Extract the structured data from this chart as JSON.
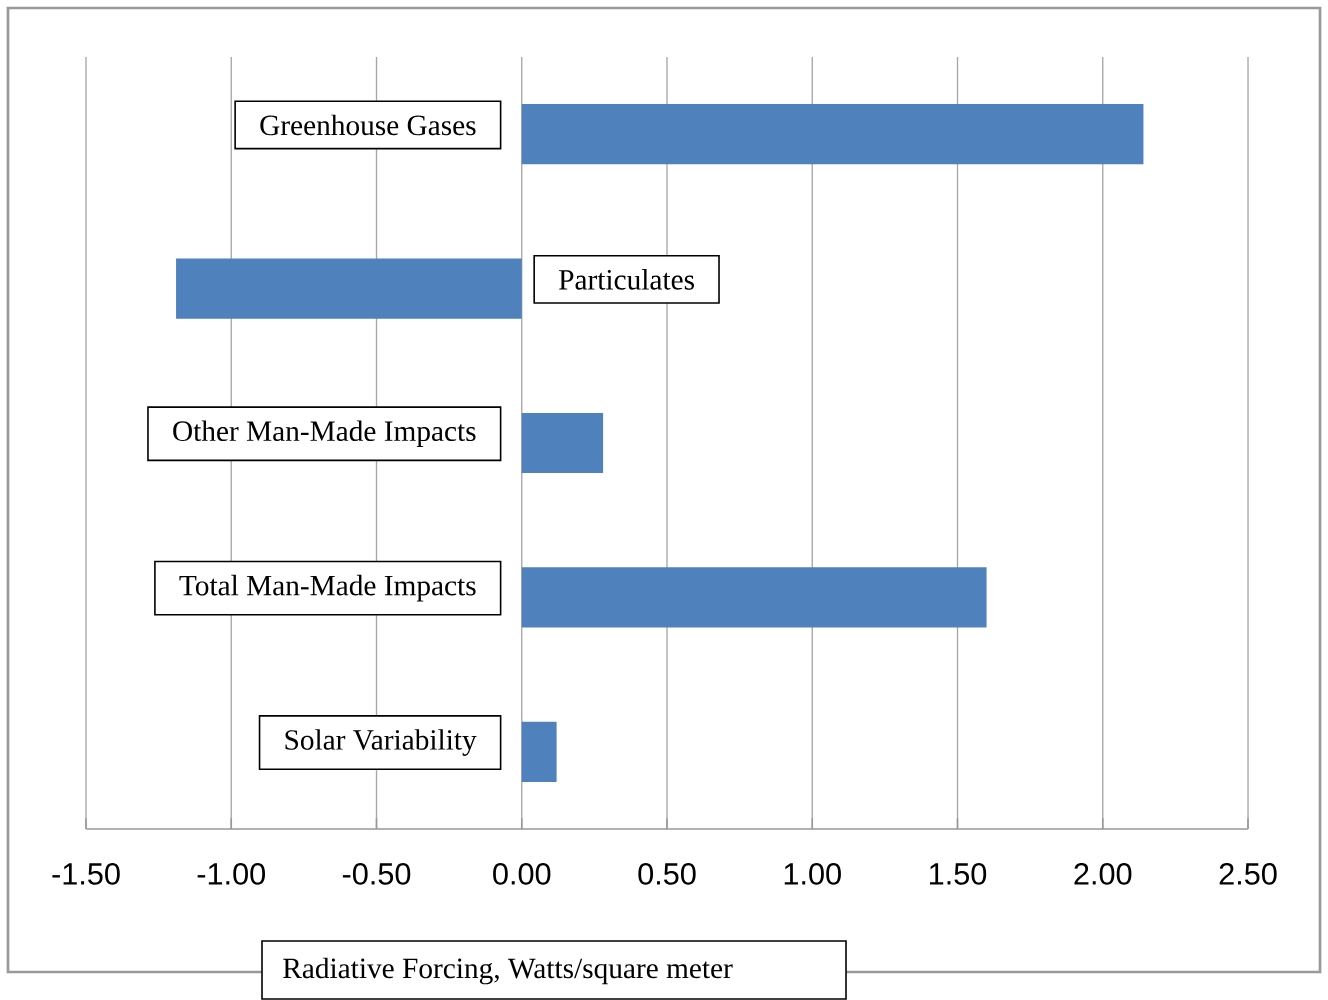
{
  "chart_data": {
    "type": "bar",
    "orientation": "horizontal",
    "xlabel": "Radiative Forcing, Watts/square meter",
    "categories": [
      "Greenhouse Gases",
      "Particulates",
      "Other Man-Made Impacts",
      "Total Man-Made Impacts",
      "Solar Variability"
    ],
    "values": [
      2.14,
      -1.19,
      0.28,
      1.6,
      0.12
    ],
    "color": "#4f81bd",
    "xlim": [
      -1.5,
      2.5
    ],
    "xticks": [
      {
        "value": -1.5,
        "label": "-1.50"
      },
      {
        "value": -1.0,
        "label": "-1.00"
      },
      {
        "value": -0.5,
        "label": "-0.50"
      },
      {
        "value": 0.0,
        "label": "0.00"
      },
      {
        "value": 0.5,
        "label": "0.50"
      },
      {
        "value": 1.0,
        "label": "1.00"
      },
      {
        "value": 1.5,
        "label": "1.50"
      },
      {
        "value": 2.0,
        "label": "2.00"
      },
      {
        "value": 2.5,
        "label": "2.50"
      }
    ],
    "grid": "x"
  }
}
